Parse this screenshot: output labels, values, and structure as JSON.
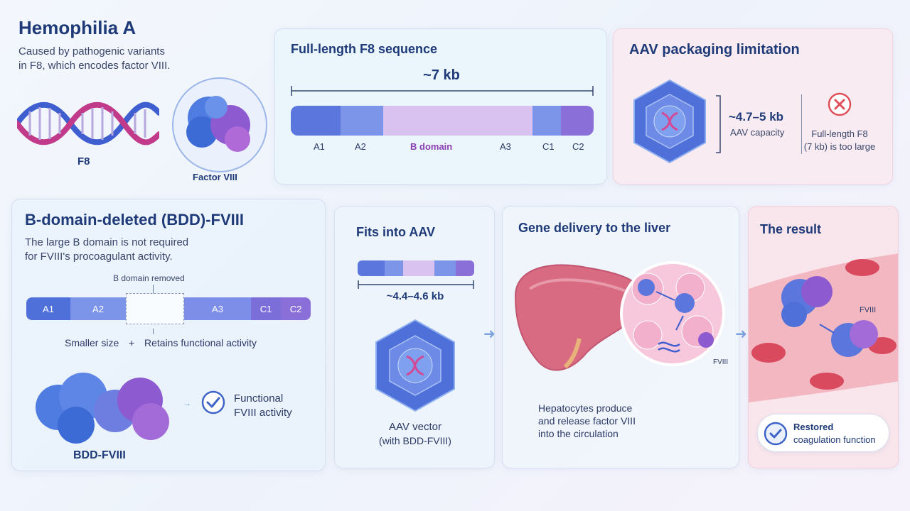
{
  "hemophilia": {
    "title": "Hemophilia A",
    "desc_line1": "Caused by pathogenic variants",
    "desc_line2": "in F8, which encodes factor VIII.",
    "gene_label": "F8",
    "protein_label": "Factor VIII"
  },
  "fulllength": {
    "title": "Full-length F8 sequence",
    "size": "~7 kb",
    "domains": [
      "A1",
      "A2",
      "B domain",
      "A3",
      "C1",
      "C2"
    ]
  },
  "aav_limit": {
    "title": "AAV packaging limitation",
    "capacity_value": "~4.7–5 kb",
    "capacity_label": "AAV capacity",
    "too_large_line1": "Full-length F8",
    "too_large_line2": "(7 kb) is too large"
  },
  "bdd": {
    "title": "B-domain-deleted (BDD)-FVIII",
    "desc_line1": "The large B domain is not required",
    "desc_line2": "for FVIII's procoagulant activity.",
    "removed_label": "B domain removed",
    "domains": [
      "A1",
      "A2",
      "A3",
      "C1",
      "C2"
    ],
    "benefit_left": "Smaller size",
    "plus": "+",
    "benefit_right": "Retains functional activity",
    "protein_label": "BDD-FVIII",
    "functional_line1": "Functional",
    "functional_line2": "FVIII activity"
  },
  "fits": {
    "title": "Fits into AAV",
    "size": "~4.4–4.6 kb",
    "vector_line1": "AAV vector",
    "vector_line2": "(with BDD-FVIII)"
  },
  "liver": {
    "title": "Gene delivery to the liver",
    "inset_label": "FVIII",
    "desc_line1": "Hepatocytes produce",
    "desc_line2": "and release factor VIII",
    "desc_line3": "into the circulation"
  },
  "result": {
    "title": "The result",
    "fviii_label": "FVIII",
    "badge_line1": "Restored",
    "badge_line2": "coagulation function"
  },
  "colors": {
    "title_blue": "#1f3a78",
    "domain_blue": "#5b7fe0",
    "domain_purple": "#8a6fd8",
    "b_domain": "#d9c2f0",
    "error_red": "#e0505a",
    "check_blue": "#3f64c8"
  }
}
